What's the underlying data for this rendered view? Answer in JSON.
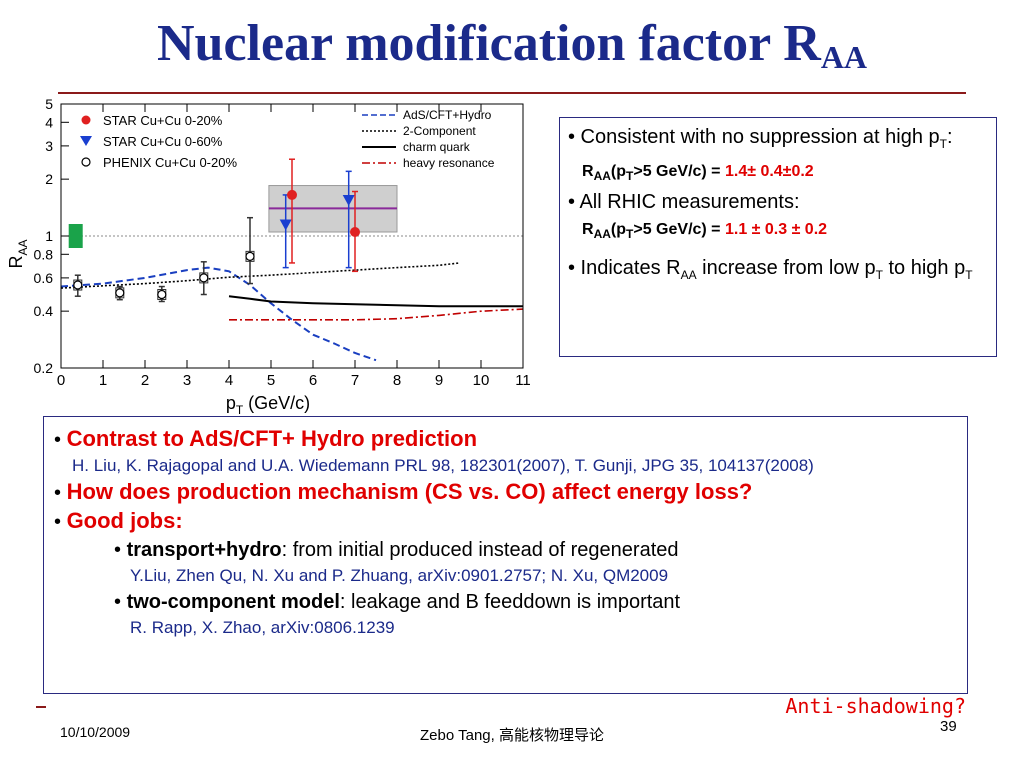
{
  "slide": {
    "title_main": "Nuclear modification factor R",
    "title_sub": "AA",
    "date": "10/10/2009",
    "author": "Zebo Tang, 高能核物理导论",
    "page": "39",
    "callout": "Anti-shadowing?"
  },
  "infobox": {
    "b1_text": "• Consistent with no suppression at high p",
    "b1_sub": "T",
    "b1_colon": ":",
    "r1_label_a": "R",
    "r1_label_sub": "AA",
    "r1_label_b": "(p",
    "r1_label_sub2": "T",
    "r1_label_c": ">5 GeV/c) = ",
    "r1_value": "1.4± 0.4±0.2",
    "b2_text": "• All RHIC measurements:",
    "r2_label_a": "R",
    "r2_label_sub": "AA",
    "r2_label_b": "(p",
    "r2_label_sub2": "T",
    "r2_label_c": ">5 GeV/c) = ",
    "r2_value": "1.1 ± 0.3 ± 0.2",
    "b3_a": "• Indicates R",
    "b3_sub": "AA",
    "b3_b": " increase from low p",
    "b3_sub2": "T",
    "b3_c": " to high p",
    "b3_sub3": "T"
  },
  "notes": {
    "h1": "Contrast to AdS/CFT+ Hydro prediction",
    "ref1": "H. Liu, K. Rajagopal and U.A. Wiedemann PRL 98, 182301(2007), T. Gunji, JPG 35, 104137(2008)",
    "h2": "How does production mechanism (CS vs. CO) affect energy loss?",
    "h3": "Good jobs:",
    "s1_bold": "transport+hydro",
    "s1_rest": ": from initial produced instead of regenerated",
    "ref2": "Y.Liu, Zhen Qu, N. Xu and P. Zhuang, arXiv:0901.2757; N. Xu, QM2009",
    "s2_bold": "two-component model",
    "s2_rest": ": leakage and B feeddown is important",
    "ref3": "R. Rapp, X. Zhao, arXiv:0806.1239"
  },
  "chart_data": {
    "type": "scatter",
    "xlabel": "p",
    "xlabel_sub": "T",
    "xlabel_unit": " (GeV/c)",
    "ylabel": "R",
    "ylabel_sub": "AA",
    "xlim": [
      0,
      11
    ],
    "ylim": [
      0.2,
      5
    ],
    "yscale": "log",
    "x_ticks": [
      0,
      1,
      2,
      3,
      4,
      5,
      6,
      7,
      8,
      9,
      10,
      11
    ],
    "x_tick_labels": [
      "0",
      "1",
      "2",
      "3",
      "4",
      "5",
      "6",
      "7",
      "8",
      "9",
      "10",
      "11"
    ],
    "y_ticks": [
      0.2,
      0.4,
      0.6,
      0.8,
      1,
      2,
      3,
      4,
      5
    ],
    "y_tick_labels": [
      "0.2",
      "0.4",
      "0.6",
      "0.8",
      "1",
      "2",
      "3",
      "4",
      "5"
    ],
    "legend_left": [
      {
        "name": "STAR Cu+Cu 0-20%",
        "marker": "circle",
        "color": "#e02020"
      },
      {
        "name": "STAR Cu+Cu 0-60%",
        "marker": "triangle-down",
        "color": "#1a3fd0"
      },
      {
        "name": "PHENIX Cu+Cu 0-20%",
        "marker": "open-circle",
        "color": "#000000"
      }
    ],
    "legend_right": [
      {
        "name": "AdS/CFT+Hydro",
        "style": "dashed",
        "color": "#1a3fc0"
      },
      {
        "name": "2-Component",
        "style": "dotted",
        "color": "#000000"
      },
      {
        "name": "charm quark",
        "style": "solid",
        "color": "#000000"
      },
      {
        "name": "heavy resonance",
        "style": "dashdot",
        "color": "#c00000"
      }
    ],
    "points": {
      "star_0_20": [
        {
          "x": 5.5,
          "y": 1.65,
          "ylo": 0.72,
          "yhi": 2.55
        },
        {
          "x": 7.0,
          "y": 1.05,
          "ylo": 0.65,
          "yhi": 1.72
        }
      ],
      "star_0_60": [
        {
          "x": 5.35,
          "y": 1.15,
          "ylo": 0.68,
          "yhi": 1.65
        },
        {
          "x": 6.85,
          "y": 1.55,
          "ylo": 0.68,
          "yhi": 2.2
        }
      ],
      "phenix_0_20": [
        {
          "x": 0.4,
          "y": 0.55,
          "ylo": 0.48,
          "yhi": 0.62
        },
        {
          "x": 1.4,
          "y": 0.5,
          "ylo": 0.46,
          "yhi": 0.54
        },
        {
          "x": 2.4,
          "y": 0.49,
          "ylo": 0.45,
          "yhi": 0.54
        },
        {
          "x": 3.4,
          "y": 0.6,
          "ylo": 0.49,
          "yhi": 0.73
        },
        {
          "x": 4.5,
          "y": 0.78,
          "ylo": 0.56,
          "yhi": 1.25
        }
      ]
    },
    "curves": {
      "ads_cft_hydro": {
        "x": [
          0,
          1,
          2,
          3,
          3.5,
          4,
          4.5,
          5,
          5.5,
          6,
          6.5,
          7,
          7.5
        ],
        "y": [
          0.54,
          0.56,
          0.6,
          0.66,
          0.68,
          0.65,
          0.55,
          0.44,
          0.36,
          0.3,
          0.27,
          0.24,
          0.22
        ]
      },
      "two_component": {
        "x": [
          0,
          1,
          2,
          3,
          4,
          5,
          6,
          7,
          8,
          9,
          9.5
        ],
        "y": [
          0.53,
          0.545,
          0.56,
          0.58,
          0.605,
          0.62,
          0.64,
          0.66,
          0.68,
          0.7,
          0.72
        ]
      },
      "charm_quark": {
        "x": [
          4,
          4.5,
          5,
          5.5,
          6,
          7,
          8,
          9,
          10,
          11
        ],
        "y": [
          0.48,
          0.465,
          0.45,
          0.445,
          0.44,
          0.435,
          0.43,
          0.425,
          0.425,
          0.425
        ]
      },
      "heavy_resonance": {
        "x": [
          4,
          5,
          6,
          7,
          8,
          9,
          10,
          11
        ],
        "y": [
          0.36,
          0.36,
          0.36,
          0.36,
          0.365,
          0.38,
          0.4,
          0.41
        ]
      }
    },
    "green_box": {
      "x": 0.35,
      "y": 1.0
    },
    "syst_band": {
      "x0": 4.95,
      "x1": 8.0,
      "y0": 1.05,
      "y1": 1.85
    },
    "avg_line": {
      "x0": 4.95,
      "x1": 8.0,
      "y": 1.4
    },
    "reference_line_y": 1.0
  }
}
